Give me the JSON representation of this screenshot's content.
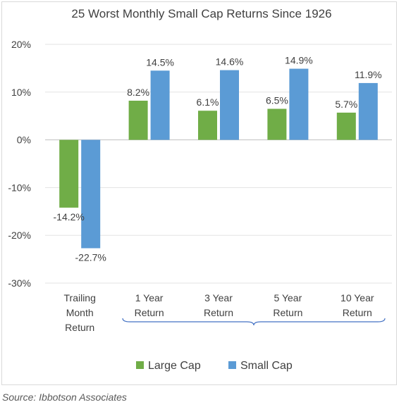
{
  "chart_data": {
    "type": "bar",
    "title": "25 Worst Monthly Small Cap Returns Since 1926",
    "categories": [
      "Trailing Month Return",
      "1 Year Return",
      "3 Year Return",
      "5 Year Return",
      "10 Year Return"
    ],
    "category_lines": [
      [
        "Trailing",
        "Month",
        "Return"
      ],
      [
        "1 Year",
        "Return"
      ],
      [
        "3 Year",
        "Return"
      ],
      [
        "5 Year",
        "Return"
      ],
      [
        "10 Year",
        "Return"
      ]
    ],
    "series": [
      {
        "name": "Large Cap",
        "color": "#70ad47",
        "values": [
          -14.2,
          8.2,
          6.1,
          6.5,
          5.7
        ],
        "labels": [
          "-14.2%",
          "8.2%",
          "6.1%",
          "6.5%",
          "5.7%"
        ]
      },
      {
        "name": "Small Cap",
        "color": "#5b9bd5",
        "values": [
          -22.7,
          14.5,
          14.6,
          14.9,
          11.9
        ],
        "labels": [
          "-22.7%",
          "14.5%",
          "14.6%",
          "14.9%",
          "11.9%"
        ]
      }
    ],
    "ylim": [
      -30,
      20
    ],
    "yticks": [
      20,
      10,
      0,
      -10,
      -20,
      -30
    ],
    "ytick_labels": [
      "20%",
      "10%",
      "0%",
      "-10%",
      "-20%",
      "-30%"
    ],
    "grid": true,
    "legend_position": "bottom",
    "brace_color": "#4472c4"
  },
  "source": "Source: Ibbotson Associates"
}
